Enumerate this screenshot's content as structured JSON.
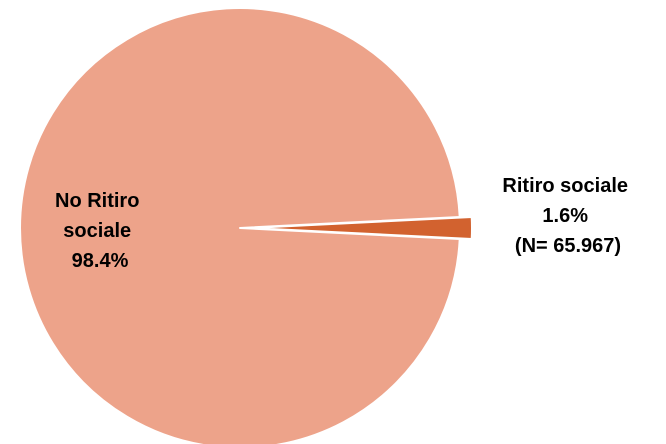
{
  "chart_data": {
    "type": "pie",
    "title": "",
    "slices": [
      {
        "label_lines": [
          "No Ritiro",
          "sociale",
          "98.4%"
        ],
        "value": 98.4,
        "color": "#EDA38A",
        "exploded": false
      },
      {
        "label_lines": [
          "Ritiro sociale",
          "1.6%",
          "(N= 65.967)"
        ],
        "value": 1.6,
        "color": "#D2622F",
        "exploded": true
      }
    ]
  }
}
